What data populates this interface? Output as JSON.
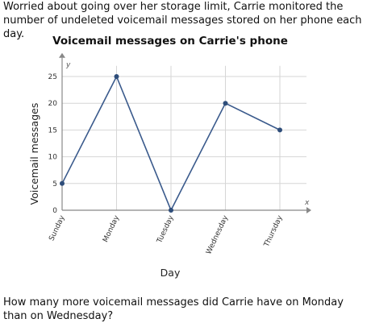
{
  "intro_text": "Worried about going over her storage limit, Carrie monitored the number of undeleted voicemail messages stored on her phone each day.",
  "question_text": "How many more voicemail messages did Carrie have on Monday than on Wednesday?",
  "chart_data": {
    "type": "line",
    "title": "Voicemail messages on Carrie's phone",
    "xlabel": "Day",
    "ylabel": "Voicemail messages",
    "x_axis_letter": "x",
    "y_axis_letter": "y",
    "categories": [
      "Sunday",
      "Monday",
      "Tuesday",
      "Wednesday",
      "Thursday"
    ],
    "values": [
      5,
      25,
      0,
      20,
      15
    ],
    "yticks": [
      0,
      5,
      10,
      15,
      20,
      25
    ],
    "ylim": [
      0,
      27
    ],
    "grid": true,
    "colors": {
      "line": "#3a5a8c",
      "marker": "#2e4d7a",
      "grid": "#d6d6d6",
      "axis": "#888888"
    }
  }
}
